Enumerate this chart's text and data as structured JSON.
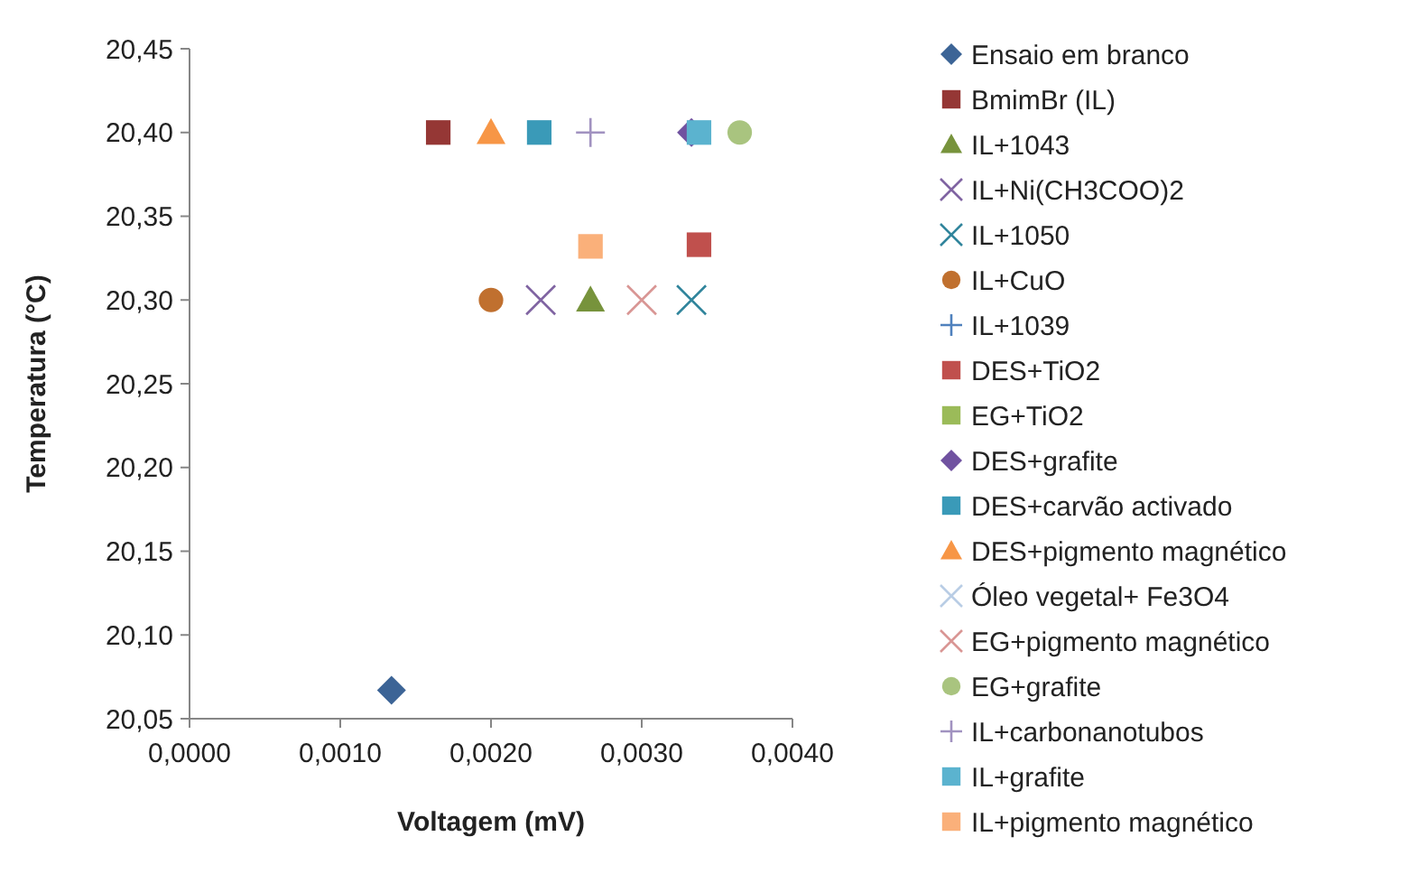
{
  "chart_data": {
    "type": "scatter",
    "xlabel": "Voltagem (mV)",
    "ylabel": "Temperatura (°C)",
    "xlim": [
      0,
      0.004
    ],
    "ylim": [
      20.05,
      20.45
    ],
    "xticks": [
      {
        "value": 0,
        "label": "0,0000"
      },
      {
        "value": 0.001,
        "label": "0,0010"
      },
      {
        "value": 0.002,
        "label": "0,0020"
      },
      {
        "value": 0.003,
        "label": "0,0030"
      },
      {
        "value": 0.004,
        "label": "0,0040"
      }
    ],
    "yticks": [
      {
        "value": 20.05,
        "label": "20,05"
      },
      {
        "value": 20.1,
        "label": "20,10"
      },
      {
        "value": 20.15,
        "label": "20,15"
      },
      {
        "value": 20.2,
        "label": "20,20"
      },
      {
        "value": 20.25,
        "label": "20,25"
      },
      {
        "value": 20.3,
        "label": "20,30"
      },
      {
        "value": 20.35,
        "label": "20,35"
      },
      {
        "value": 20.4,
        "label": "20,40"
      },
      {
        "value": 20.45,
        "label": "20,45"
      }
    ],
    "grid": false,
    "legend": "right",
    "series": [
      {
        "name": "Ensaio em branco",
        "color": "#3c6496",
        "marker": "diamond",
        "x": [
          0.00134
        ],
        "values": [
          20.067
        ]
      },
      {
        "name": "BmimBr (IL)",
        "color": "#953735",
        "marker": "square",
        "x": [
          0.00165
        ],
        "values": [
          20.4
        ]
      },
      {
        "name": "IL+1043",
        "color": "#77933c",
        "marker": "triangle",
        "x": [
          0.00266
        ],
        "values": [
          20.3
        ]
      },
      {
        "name": "IL+Ni(CH3COO)2",
        "color": "#8064a2",
        "marker": "cross",
        "x": [
          0.00233
        ],
        "values": [
          20.3
        ]
      },
      {
        "name": "IL+1050",
        "color": "#31859c",
        "marker": "cross",
        "x": [
          0.00333
        ],
        "values": [
          20.3
        ]
      },
      {
        "name": "IL+CuO",
        "color": "#c0702f",
        "marker": "circle",
        "x": [
          0.002
        ],
        "values": [
          20.3
        ]
      },
      {
        "name": "IL+1039",
        "color": "#4f81bd",
        "marker": "plus",
        "x": [
          null
        ],
        "values": [
          null
        ]
      },
      {
        "name": "DES+TiO2",
        "color": "#c0504d",
        "marker": "square",
        "x": [
          0.00338
        ],
        "values": [
          20.333
        ]
      },
      {
        "name": "EG+TiO2",
        "color": "#9bbb59",
        "marker": "square",
        "x": [
          null
        ],
        "values": [
          null
        ]
      },
      {
        "name": "DES+grafite",
        "color": "#7052a0",
        "marker": "diamond",
        "x": [
          0.00333
        ],
        "values": [
          20.4
        ]
      },
      {
        "name": "DES+carvão activado",
        "color": "#3a9ab8",
        "marker": "square",
        "x": [
          0.00232
        ],
        "values": [
          20.4
        ]
      },
      {
        "name": "DES+pigmento magnético",
        "color": "#f79646",
        "marker": "triangle",
        "x": [
          0.002
        ],
        "values": [
          20.4
        ]
      },
      {
        "name": "Óleo vegetal+ Fe3O4",
        "color": "#b9cde5",
        "marker": "cross",
        "x": [
          null
        ],
        "values": [
          null
        ]
      },
      {
        "name": "EG+pigmento magnético",
        "color": "#d99694",
        "marker": "cross",
        "x": [
          0.003
        ],
        "values": [
          20.3
        ]
      },
      {
        "name": "EG+grafite",
        "color": "#a9c47f",
        "marker": "circle",
        "x": [
          0.00365
        ],
        "values": [
          20.4
        ]
      },
      {
        "name": "IL+carbonanotubos",
        "color": "#a192c0",
        "marker": "plus",
        "x": [
          0.00266
        ],
        "values": [
          20.4
        ]
      },
      {
        "name": "IL+grafite",
        "color": "#5bb3cf",
        "marker": "square",
        "x": [
          0.00338
        ],
        "values": [
          20.4
        ]
      },
      {
        "name": "IL+pigmento magnético",
        "color": "#fab07a",
        "marker": "square",
        "x": [
          0.00266
        ],
        "values": [
          20.332
        ]
      }
    ]
  }
}
